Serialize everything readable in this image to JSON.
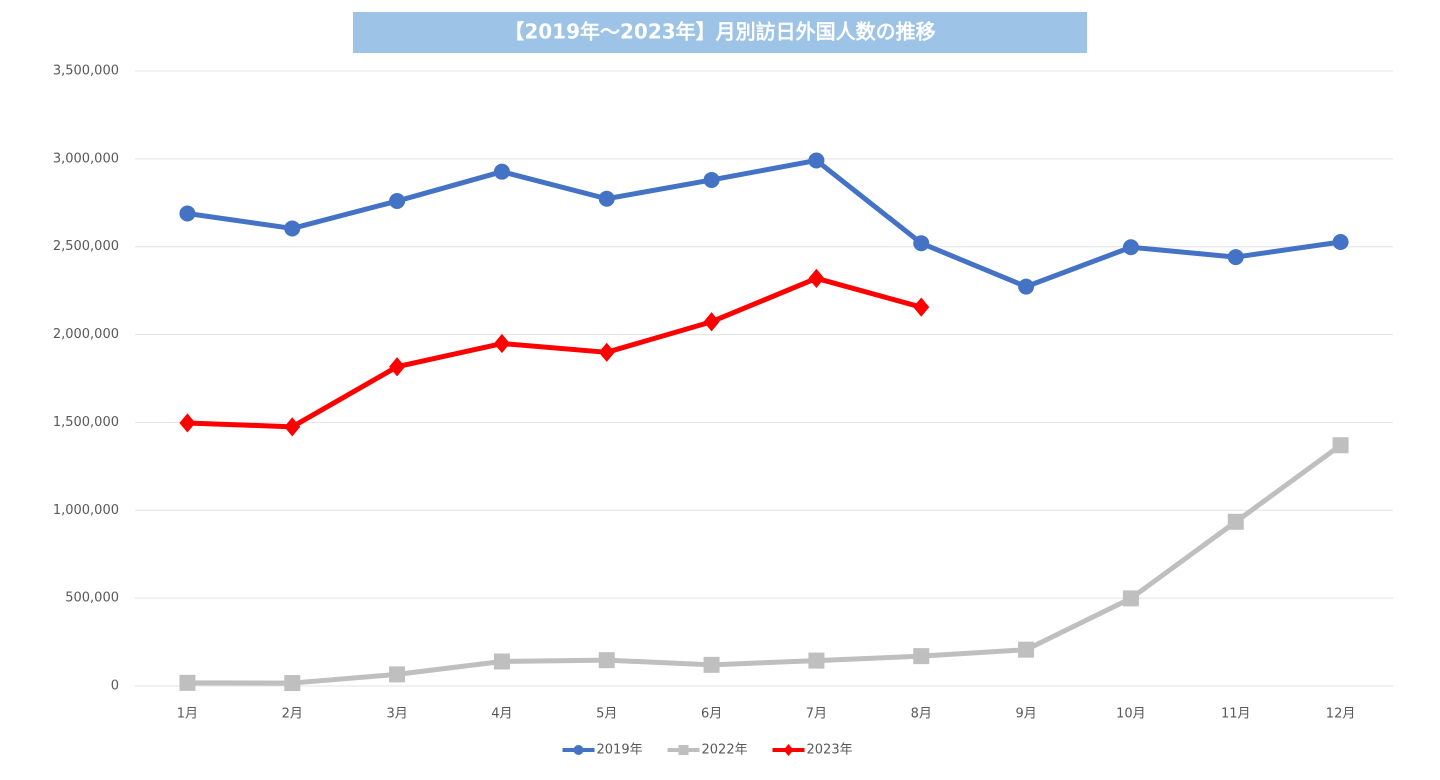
{
  "chart_data": {
    "type": "line",
    "title": "【2019年～2023年】月別訪日外国人数の推移",
    "categories": [
      "1月",
      "2月",
      "3月",
      "4月",
      "5月",
      "6月",
      "7月",
      "8月",
      "9月",
      "10月",
      "11月",
      "12月"
    ],
    "series": [
      {
        "name": "2019年",
        "color": "#4472c4",
        "marker": "circle",
        "values": [
          2689000,
          2604000,
          2760000,
          2927000,
          2773000,
          2880000,
          2991000,
          2520000,
          2273000,
          2497000,
          2441000,
          2527000
        ]
      },
      {
        "name": "2022年",
        "color": "#bfbfbf",
        "marker": "square",
        "values": [
          17800,
          16700,
          66100,
          139500,
          147000,
          120400,
          144500,
          169900,
          206600,
          498600,
          934500,
          1370100
        ]
      },
      {
        "name": "2023年",
        "color": "#ff0000",
        "marker": "diamond",
        "values": [
          1497000,
          1475000,
          1817000,
          1949000,
          1899000,
          2073000,
          2320000,
          2156000,
          null,
          null,
          null,
          null
        ]
      }
    ],
    "ylim": [
      0,
      3500000
    ],
    "yticks": [
      0,
      {
        "value": 500000,
        "label": "500,000"
      },
      {
        "value": 1000000,
        "label": "1,000,000"
      },
      {
        "value": 1500000,
        "label": "1,500,000"
      },
      {
        "value": 2000000,
        "label": "2,000,000"
      },
      {
        "value": 2500000,
        "label": "2,500,000"
      },
      {
        "value": 3000000,
        "label": "3,000,000"
      },
      {
        "value": 3500000,
        "label": "3,500,000"
      }
    ],
    "grid": true,
    "legend": "bottom"
  }
}
